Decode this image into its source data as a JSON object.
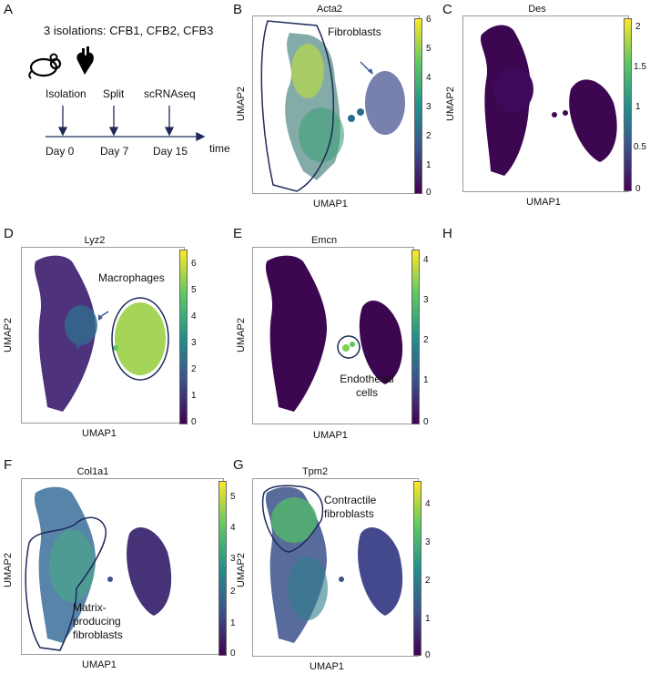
{
  "colors": {
    "cmap_low": "#440154",
    "cmap_high": "#fde725",
    "outline": "#1f2a5a",
    "arrow": "#3b5998"
  },
  "panelA": {
    "label": "A",
    "header": "3 isolations: CFB1, CFB2, CFB3",
    "icons": [
      "mouse-icon",
      "heart-icon"
    ],
    "steps": [
      {
        "event": "Isolation",
        "day": "Day 0"
      },
      {
        "event": "Split",
        "day": "Day 7"
      },
      {
        "event": "scRNAseq",
        "day": "Day 15"
      }
    ],
    "axis_label": "time"
  },
  "axes": {
    "x": "UMAP1",
    "y": "UMAP2"
  },
  "panels": {
    "B": {
      "label": "B",
      "gene": "Acta2",
      "ticks": [
        "6",
        "5",
        "4",
        "3",
        "2",
        "1",
        "0"
      ],
      "annotation": "Fibroblasts"
    },
    "C": {
      "label": "C",
      "gene": "Des",
      "ticks": [
        "2",
        "1.5",
        "1",
        "0.5",
        "0"
      ]
    },
    "D": {
      "label": "D",
      "gene": "Lyz2",
      "ticks": [
        "6",
        "5",
        "4",
        "3",
        "2",
        "1",
        "0"
      ],
      "annotation": "Macrophages"
    },
    "E": {
      "label": "E",
      "gene": "Emcn",
      "ticks": [
        "4",
        "3",
        "2",
        "1",
        "0"
      ],
      "annotation": "Endothelial cells"
    },
    "F": {
      "label": "F",
      "gene": "Col1a1",
      "ticks": [
        "5",
        "4",
        "3",
        "2",
        "1",
        "0"
      ],
      "annotation": "Matrix-producing fibroblasts"
    },
    "G": {
      "label": "G",
      "gene": "Tpm2",
      "ticks": [
        "4",
        "3",
        "2",
        "1",
        "0"
      ],
      "annotation": "Contractile fibroblasts"
    },
    "H": {
      "label": "H"
    }
  }
}
